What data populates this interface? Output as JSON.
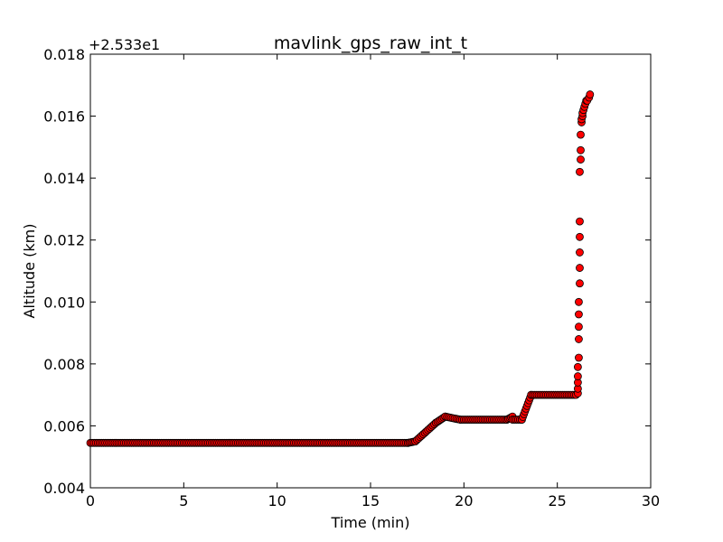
{
  "chart_data": {
    "type": "scatter",
    "title": "mavlink_gps_raw_int_t",
    "xlabel": "Time (min)",
    "ylabel": "Altitude (km)",
    "offset_label": "+2.533e1",
    "xlim": [
      0,
      30
    ],
    "ylim": [
      0.004,
      0.018
    ],
    "xticks": [
      0,
      5,
      10,
      15,
      20,
      25,
      30
    ],
    "xtick_labels": [
      "0",
      "5",
      "10",
      "15",
      "20",
      "25",
      "30"
    ],
    "yticks": [
      0.004,
      0.006,
      0.008,
      0.01,
      0.012,
      0.014,
      0.016,
      0.018
    ],
    "ytick_labels": [
      "0.004",
      "0.006",
      "0.008",
      "0.010",
      "0.012",
      "0.014",
      "0.016",
      "0.018"
    ],
    "grid": false,
    "marker_color": "#ff0000",
    "marker_edge_color": "#000000",
    "segments": [
      {
        "x_start": 0.0,
        "x_end": 17.0,
        "y_start": 0.00545,
        "y_end": 0.00545,
        "count": 171
      },
      {
        "x_start": 17.0,
        "x_end": 17.4,
        "y_start": 0.00545,
        "y_end": 0.0055,
        "count": 6
      },
      {
        "x_start": 17.4,
        "x_end": 18.5,
        "y_start": 0.0055,
        "y_end": 0.0061,
        "count": 14
      },
      {
        "x_start": 18.5,
        "x_end": 19.0,
        "y_start": 0.0061,
        "y_end": 0.0063,
        "count": 7
      },
      {
        "x_start": 19.0,
        "x_end": 19.8,
        "y_start": 0.0063,
        "y_end": 0.0062,
        "count": 9
      },
      {
        "x_start": 19.8,
        "x_end": 22.3,
        "y_start": 0.0062,
        "y_end": 0.0062,
        "count": 26
      },
      {
        "x_start": 22.3,
        "x_end": 22.6,
        "y_start": 0.0062,
        "y_end": 0.0063,
        "count": 5
      },
      {
        "x_start": 22.6,
        "x_end": 23.1,
        "y_start": 0.0062,
        "y_end": 0.0062,
        "count": 6
      },
      {
        "x_start": 23.1,
        "x_end": 23.6,
        "y_start": 0.0062,
        "y_end": 0.007,
        "count": 10
      },
      {
        "x_start": 23.6,
        "x_end": 26.0,
        "y_start": 0.007,
        "y_end": 0.007,
        "count": 25
      }
    ],
    "points": [
      [
        26.1,
        0.00705
      ],
      [
        26.1,
        0.0072
      ],
      [
        26.1,
        0.0074
      ],
      [
        26.1,
        0.0076
      ],
      [
        26.1,
        0.0079
      ],
      [
        26.15,
        0.0082
      ],
      [
        26.15,
        0.0088
      ],
      [
        26.15,
        0.0092
      ],
      [
        26.15,
        0.0096
      ],
      [
        26.15,
        0.01
      ],
      [
        26.2,
        0.0106
      ],
      [
        26.2,
        0.0111
      ],
      [
        26.2,
        0.0116
      ],
      [
        26.2,
        0.0121
      ],
      [
        26.2,
        0.0126
      ],
      [
        26.2,
        0.0142
      ],
      [
        26.25,
        0.0146
      ],
      [
        26.25,
        0.0149
      ],
      [
        26.25,
        0.0154
      ],
      [
        26.3,
        0.0158
      ],
      [
        26.3,
        0.0159
      ],
      [
        26.35,
        0.016
      ],
      [
        26.35,
        0.0161
      ],
      [
        26.4,
        0.0162
      ],
      [
        26.45,
        0.0163
      ],
      [
        26.5,
        0.0164
      ],
      [
        26.55,
        0.0165
      ],
      [
        26.6,
        0.0165
      ],
      [
        26.7,
        0.0166
      ],
      [
        26.75,
        0.0167
      ]
    ]
  }
}
